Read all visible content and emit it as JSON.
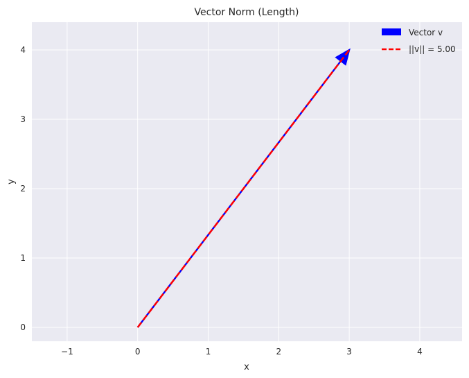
{
  "chart_data": {
    "type": "line",
    "title": "Vector Norm (Length)",
    "xlabel": "x",
    "ylabel": "y",
    "xlim": [
      -1.5,
      4.6
    ],
    "ylim": [
      -0.2,
      4.4
    ],
    "xticks": [
      -1,
      0,
      1,
      2,
      3,
      4
    ],
    "xtick_labels": [
      "−1",
      "0",
      "1",
      "2",
      "3",
      "4"
    ],
    "yticks": [
      0,
      1,
      2,
      3,
      4
    ],
    "ytick_labels": [
      "0",
      "1",
      "2",
      "3",
      "4"
    ],
    "grid": true,
    "legend_position": "top-right",
    "background": "#eaeaf2",
    "series": [
      {
        "name": "Vector v",
        "kind": "arrow",
        "color": "#0000ff",
        "x": [
          0,
          3
        ],
        "y": [
          0,
          4
        ]
      },
      {
        "name": "||v|| = 5.00",
        "kind": "dashed-line",
        "color": "#ff0000",
        "x": [
          0,
          3
        ],
        "y": [
          0,
          4
        ]
      }
    ]
  }
}
